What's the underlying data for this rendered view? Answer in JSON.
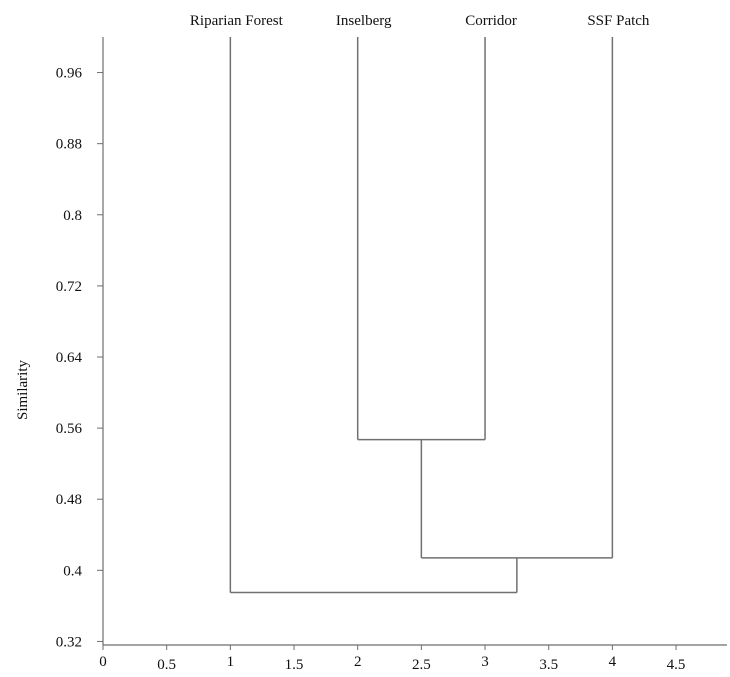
{
  "chart_data": {
    "type": "dendrogram",
    "title": "",
    "xlabel": "",
    "ylabel": "Similarity",
    "xlim": [
      0,
      4.9
    ],
    "ylim": [
      0.316,
      1.0
    ],
    "x_ticks": [
      "0",
      "0.5",
      "1",
      "1.5",
      "2",
      "2.5",
      "3",
      "3.5",
      "4",
      "4.5"
    ],
    "x_tick_values": [
      0,
      0.5,
      1,
      1.5,
      2,
      2.5,
      3,
      3.5,
      4,
      4.5
    ],
    "y_ticks": [
      "0.32",
      "0.4",
      "0.48",
      "0.56",
      "0.64",
      "0.72",
      "0.8",
      "0.88",
      "0.96"
    ],
    "y_tick_values": [
      0.32,
      0.4,
      0.48,
      0.56,
      0.64,
      0.72,
      0.8,
      0.88,
      0.96
    ],
    "leaves": [
      {
        "name": "Riparian Forest",
        "x": 1
      },
      {
        "name": "Inselberg",
        "x": 2
      },
      {
        "name": "Corridor",
        "x": 3
      },
      {
        "name": "SSF Patch",
        "x": 4
      }
    ],
    "merges": [
      {
        "left_x": 2,
        "right_x": 3,
        "similarity": 0.547,
        "node_x": 2.5
      },
      {
        "left_x": 2.5,
        "right_x": 4,
        "similarity": 0.414,
        "node_x": 3.25
      },
      {
        "left_x": 1,
        "right_x": 3.25,
        "similarity": 0.375,
        "node_x": 2.125
      }
    ],
    "grid": false
  }
}
